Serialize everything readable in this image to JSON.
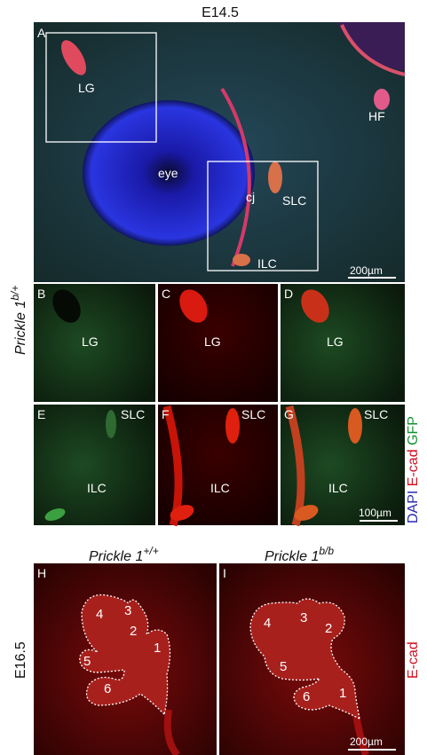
{
  "figure": {
    "stage_top": "E14.5",
    "genotype_top": {
      "gene": "Prickle 1",
      "allele": "b/+"
    },
    "channels": [
      "DAPI",
      "E-cad",
      "GFP"
    ],
    "panel_a": {
      "letter": "A",
      "labels": [
        "LG",
        "HF",
        "eye",
        "cj",
        "SLC",
        "ILC"
      ],
      "scale": "200µm"
    },
    "panel_b": {
      "letter": "B",
      "label": "LG"
    },
    "panel_c": {
      "letter": "C",
      "label": "LG"
    },
    "panel_d": {
      "letter": "D",
      "label": "LG"
    },
    "panel_e": {
      "letter": "E",
      "labels": [
        "SLC",
        "ILC"
      ]
    },
    "panel_f": {
      "letter": "F",
      "labels": [
        "SLC",
        "ILC"
      ]
    },
    "panel_g": {
      "letter": "G",
      "labels": [
        "SLC",
        "ILC"
      ],
      "scale": "100µm"
    },
    "genotype_h": {
      "gene": "Prickle 1",
      "allele": "+/+"
    },
    "genotype_i": {
      "gene": "Prickle 1",
      "allele": "b/b"
    },
    "stage_bottom": "E16.5",
    "panel_h": {
      "letter": "H",
      "lobes": [
        "4",
        "3",
        "2",
        "1",
        "5",
        "6"
      ]
    },
    "panel_i": {
      "letter": "I",
      "lobes": [
        "4",
        "3",
        "2",
        "1",
        "5",
        "6"
      ],
      "scale": "200µm"
    },
    "channel_bottom": "E-cad"
  }
}
